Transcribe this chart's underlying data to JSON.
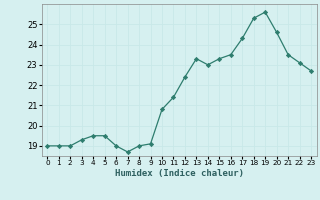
{
  "x": [
    0,
    1,
    2,
    3,
    4,
    5,
    6,
    7,
    8,
    9,
    10,
    11,
    12,
    13,
    14,
    15,
    16,
    17,
    18,
    19,
    20,
    21,
    22,
    23
  ],
  "y": [
    19.0,
    19.0,
    19.0,
    19.3,
    19.5,
    19.5,
    19.0,
    18.7,
    19.0,
    19.1,
    20.8,
    21.4,
    22.4,
    23.3,
    23.0,
    23.3,
    23.5,
    24.3,
    25.3,
    25.6,
    24.6,
    23.5,
    23.1,
    22.7
  ],
  "xlabel": "Humidex (Indice chaleur)",
  "ylim": [
    18.5,
    26.0
  ],
  "xlim": [
    -0.5,
    23.5
  ],
  "yticks": [
    19,
    20,
    21,
    22,
    23,
    24,
    25
  ],
  "xtick_labels": [
    "0",
    "1",
    "2",
    "3",
    "4",
    "5",
    "6",
    "7",
    "8",
    "9",
    "10",
    "11",
    "12",
    "13",
    "14",
    "15",
    "16",
    "17",
    "18",
    "19",
    "20",
    "21",
    "22",
    "23"
  ],
  "line_color": "#2e7d6e",
  "marker_color": "#2e7d6e",
  "bg_color": "#d6f0f0",
  "grid_color": "#c8e8e8"
}
